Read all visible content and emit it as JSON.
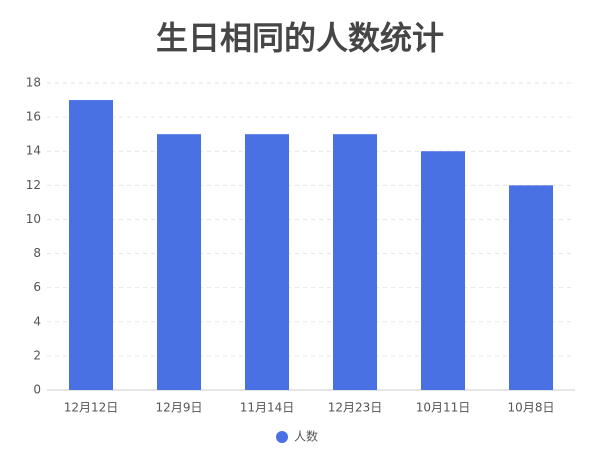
{
  "chart_data": {
    "type": "bar",
    "title": "生日相同的人数统计",
    "categories": [
      "12月12日",
      "12月9日",
      "11月14日",
      "12月23日",
      "10月11日",
      "10月8日"
    ],
    "series": [
      {
        "name": "人数",
        "color": "#4a71e3",
        "values": [
          17,
          15,
          15,
          15,
          14,
          12
        ]
      }
    ],
    "ylim": [
      0,
      18
    ],
    "yticks": [
      0,
      2,
      4,
      6,
      8,
      10,
      12,
      14,
      16,
      18
    ],
    "grid": true,
    "legend": "bottom"
  }
}
